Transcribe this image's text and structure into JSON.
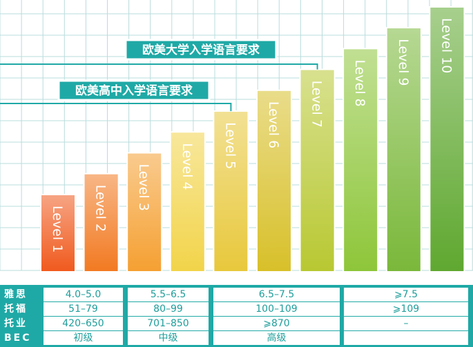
{
  "chart_data": {
    "type": "bar",
    "categories": [
      "Level 1",
      "Level 2",
      "Level 3",
      "Level 4",
      "Level 5",
      "Level 6",
      "Level 7",
      "Level 8",
      "Level 9",
      "Level 10"
    ],
    "values": [
      1,
      2,
      3,
      4,
      5,
      6,
      7,
      8,
      9,
      10
    ],
    "ylim": [
      0,
      10
    ],
    "grid": true,
    "colors": [
      "#f05a1e",
      "#f27a22",
      "#f5a032",
      "#f2d44a",
      "#e8c83c",
      "#d8c02a",
      "#b8c832",
      "#8ec63a",
      "#7ab83a",
      "#5fa830"
    ],
    "annotations": [
      "欧美大学入学语言要求",
      "欧美高中入学语言要求"
    ]
  },
  "table": {
    "rows": [
      {
        "label": "雅思",
        "cells": [
          "4.0–5.0",
          "5.5–6.5",
          "6.5–7.5",
          "⩾7.5"
        ]
      },
      {
        "label": "托福",
        "cells": [
          "51–79",
          "80–99",
          "100–109",
          "⩾109"
        ]
      },
      {
        "label": "托业",
        "cells": [
          "420–650",
          "701–850",
          "⩾870",
          "–"
        ]
      },
      {
        "label": "BEC",
        "cells": [
          "初级",
          "中级",
          "高级",
          ""
        ]
      }
    ]
  },
  "colors": {
    "accent": "#1fa9a6",
    "grid": "#b9dcdc"
  }
}
